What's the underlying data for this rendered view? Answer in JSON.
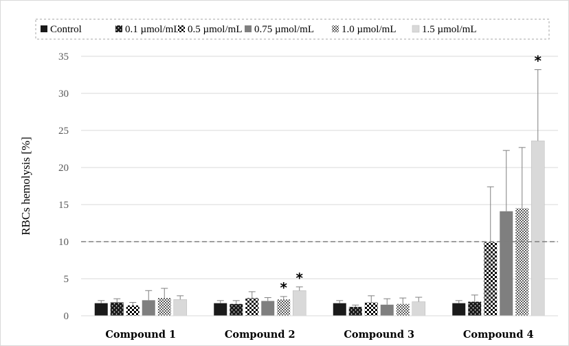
{
  "chart_data": {
    "type": "bar",
    "ylabel": "RBCs hemolysis [%]",
    "ylim": [
      0,
      35
    ],
    "yticks": [
      0,
      5,
      10,
      15,
      20,
      25,
      30,
      35
    ],
    "grid": true,
    "legend_position": "top",
    "categories": [
      "Compound 1",
      "Compound 2",
      "Compound 3",
      "Compound 4"
    ],
    "reference_line": 10,
    "series": [
      {
        "name": "Control",
        "pattern": "solid-black",
        "color": "#1a1a1a",
        "values": [
          1.7,
          1.7,
          1.7,
          1.7
        ],
        "errors": [
          0.35,
          0.35,
          0.35,
          0.35
        ],
        "significant": [
          false,
          false,
          false,
          false
        ]
      },
      {
        "name": "0.1 µmol/mL",
        "pattern": "dots-dark",
        "color": "#1a1a1a",
        "values": [
          1.8,
          1.6,
          1.2,
          1.9
        ],
        "errors": [
          0.5,
          0.45,
          0.25,
          0.9
        ],
        "significant": [
          false,
          false,
          false,
          false
        ]
      },
      {
        "name": "0.5 µmol/mL",
        "pattern": "checker",
        "color": "#000000",
        "values": [
          1.4,
          2.4,
          1.8,
          9.9
        ],
        "errors": [
          0.4,
          0.85,
          0.9,
          7.5
        ],
        "significant": [
          false,
          false,
          false,
          false
        ]
      },
      {
        "name": "0.75 µmol/mL",
        "pattern": "solid-gray",
        "color": "#7f7f7f",
        "values": [
          2.1,
          2.0,
          1.5,
          14.1
        ],
        "errors": [
          1.3,
          0.45,
          0.8,
          8.2
        ],
        "significant": [
          false,
          false,
          false,
          false
        ]
      },
      {
        "name": "1.0 µmol/mL",
        "pattern": "fine-checker",
        "color": "#595959",
        "values": [
          2.4,
          2.2,
          1.6,
          14.5
        ],
        "errors": [
          1.3,
          0.4,
          0.8,
          8.2
        ],
        "significant": [
          false,
          true,
          false,
          false
        ]
      },
      {
        "name": "1.5 µmol/mL",
        "pattern": "solid-light",
        "color": "#d9d9d9",
        "values": [
          2.2,
          3.4,
          1.9,
          23.6
        ],
        "errors": [
          0.5,
          0.5,
          0.6,
          9.6
        ],
        "significant": [
          false,
          true,
          false,
          true
        ]
      }
    ],
    "significance_marker": "*"
  }
}
